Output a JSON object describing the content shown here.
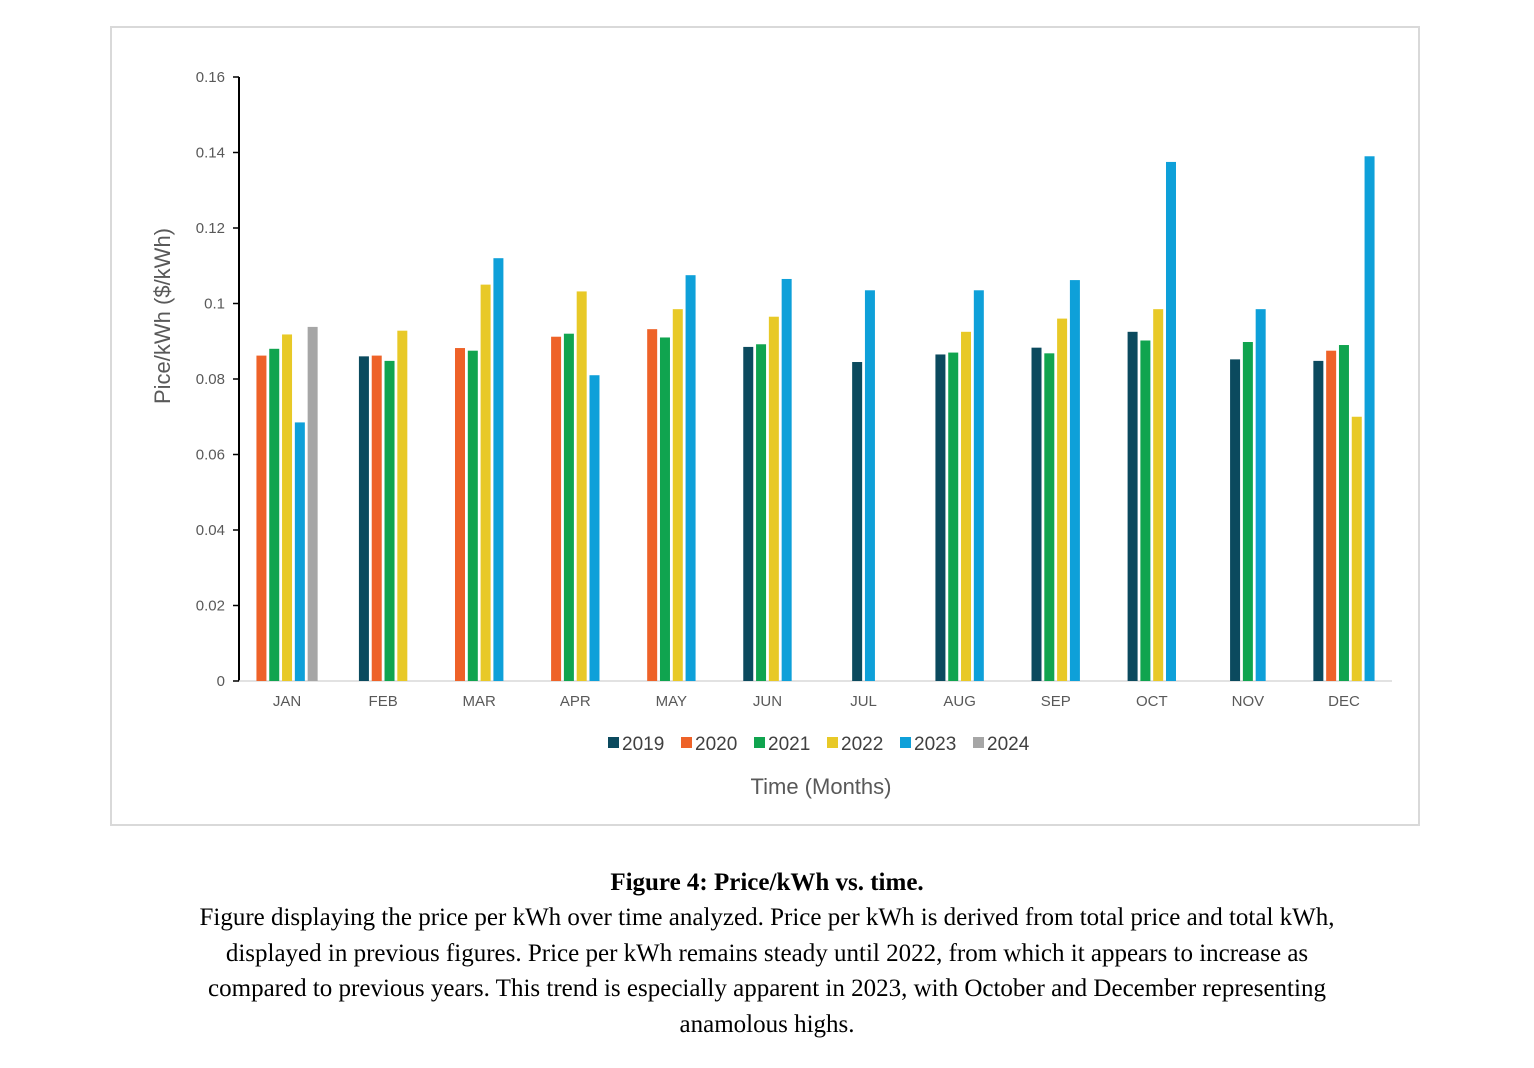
{
  "chart_data": {
    "type": "bar",
    "title": "",
    "xlabel": "Time (Months)",
    "ylabel": "Pice/kWh ($/kWh)",
    "ylim": [
      0,
      0.16
    ],
    "yticks": [
      "0",
      "0.02",
      "0.04",
      "0.06",
      "0.08",
      "0.1",
      "0.12",
      "0.14",
      "0.16"
    ],
    "ytick_values": [
      0,
      0.02,
      0.04,
      0.06,
      0.08,
      0.1,
      0.12,
      0.14,
      0.16
    ],
    "grid": false,
    "legend_position": "bottom",
    "categories": [
      "JAN",
      "FEB",
      "MAR",
      "APR",
      "MAY",
      "JUN",
      "JUL",
      "AUG",
      "SEP",
      "OCT",
      "NOV",
      "DEC"
    ],
    "series": [
      {
        "name": "2019",
        "color": "#0b4a5e",
        "values": [
          null,
          0.086,
          null,
          null,
          null,
          0.0885,
          0.0845,
          0.0865,
          0.0883,
          0.0925,
          0.0852,
          0.0848
        ]
      },
      {
        "name": "2020",
        "color": "#ee6228",
        "values": [
          0.0862,
          0.0862,
          0.0882,
          0.0912,
          0.0932,
          null,
          null,
          null,
          null,
          null,
          null,
          0.0875
        ]
      },
      {
        "name": "2021",
        "color": "#10a44f",
        "values": [
          0.088,
          0.0848,
          0.0875,
          0.092,
          0.091,
          0.0892,
          null,
          0.087,
          0.0868,
          0.0902,
          0.0898,
          0.089
        ]
      },
      {
        "name": "2022",
        "color": "#e8c927",
        "values": [
          0.0918,
          0.0928,
          0.105,
          0.1032,
          0.0985,
          0.0965,
          null,
          0.0925,
          0.096,
          0.0985,
          null,
          0.07
        ]
      },
      {
        "name": "2023",
        "color": "#0ea0d9",
        "values": [
          0.0685,
          null,
          0.112,
          0.081,
          0.1075,
          0.1065,
          0.1035,
          0.1035,
          0.1062,
          0.1375,
          0.0985,
          0.139
        ]
      },
      {
        "name": "2024",
        "color": "#a6a6a6",
        "values": [
          0.0938,
          null,
          null,
          null,
          null,
          null,
          null,
          null,
          null,
          null,
          null,
          null
        ]
      }
    ]
  },
  "caption": {
    "title": "Figure 4: Price/kWh vs. time.",
    "lines": [
      "Figure displaying the price per kWh over time analyzed. Price per kWh is derived from total price and total kWh,",
      "displayed in previous figures. Price per kWh remains steady until 2022, from which it appears to increase as",
      "compared to previous years. This trend is especially apparent in 2023, with October and December representing",
      "anamolous highs."
    ]
  }
}
